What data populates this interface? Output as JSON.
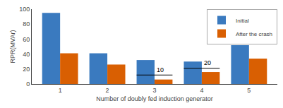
{
  "chart_data": {
    "type": "bar",
    "categories": [
      1,
      2,
      3,
      4,
      5
    ],
    "series": [
      {
        "name": "Initial",
        "color": "#3a7abf",
        "values": [
          95,
          41,
          32,
          30,
          52
        ]
      },
      {
        "name": "After the crash",
        "color": "#d95f02",
        "values": [
          41,
          26,
          6,
          16,
          34
        ]
      }
    ],
    "xlabel": "Number of doubly fed induction generator",
    "ylabel": "RPR(MVAr)",
    "ylim": [
      0,
      100
    ],
    "yticks": [
      0,
      20,
      40,
      60,
      80,
      100
    ],
    "grid": false,
    "legend": "upper right",
    "hlines": [
      {
        "category": 3,
        "y": 12
      },
      {
        "category": 4,
        "y": 21
      }
    ],
    "annotations": [
      {
        "text": "10",
        "category": 3,
        "y": 12.5
      },
      {
        "text": "20",
        "category": 4,
        "y": 21.5
      }
    ]
  }
}
